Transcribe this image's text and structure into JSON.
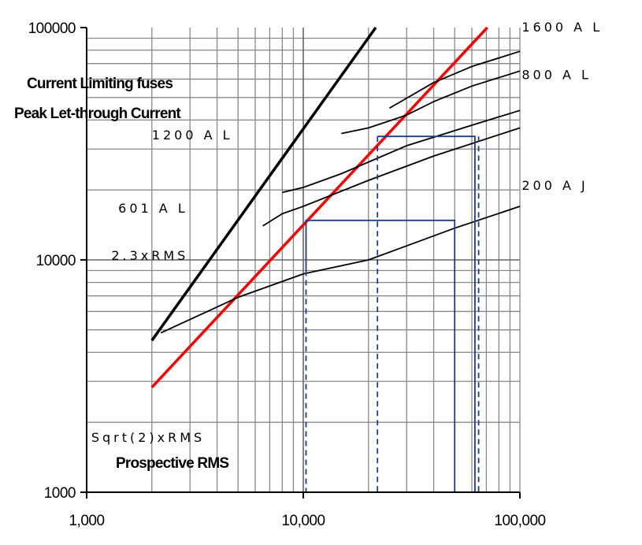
{
  "chart_data": {
    "type": "line",
    "title_lines": [
      "Current Limiting fuses",
      "Peak Let-through Current"
    ],
    "xlabel": "Prospective RMS",
    "ylabel": "",
    "x_scale": "log",
    "y_scale": "log",
    "xlim": [
      1000,
      100000
    ],
    "ylim": [
      1000,
      100000
    ],
    "x_ticks": [
      {
        "value": 1000,
        "label": "1,000"
      },
      {
        "value": 10000,
        "label": "10,000"
      },
      {
        "value": 100000,
        "label": "100,000"
      }
    ],
    "y_ticks": [
      {
        "value": 100000,
        "label": "100000"
      },
      {
        "value": 10000,
        "label": "10000"
      },
      {
        "value": 1000,
        "label": "1000"
      }
    ],
    "grid": true,
    "series": [
      {
        "name": "2.3xRMS",
        "color": "#000000",
        "style": "thick",
        "label_at": [
          1300,
          10000
        ],
        "points": [
          [
            2000,
            4500
          ],
          [
            21600,
            100000
          ]
        ]
      },
      {
        "name": "Sqrt(2)xRMS",
        "color": "#ff0000",
        "style": "thick",
        "label_at": [
          1050,
          1650
        ],
        "points": [
          [
            2000,
            2828
          ],
          [
            70700,
            100000
          ]
        ]
      },
      {
        "name": "200 A J",
        "color": "#000000",
        "style": "thin",
        "label_at": [
          102000,
          20000
        ],
        "points": [
          [
            2200,
            4850
          ],
          [
            5000,
            6900
          ],
          [
            10000,
            8700
          ],
          [
            20000,
            10000
          ],
          [
            50000,
            13700
          ],
          [
            100000,
            17000
          ]
        ]
      },
      {
        "name": "601 A L",
        "color": "#000000",
        "style": "thin",
        "label_at": [
          1400,
          16000
        ],
        "points": [
          [
            6500,
            14000
          ],
          [
            8000,
            15800
          ],
          [
            10000,
            17000
          ],
          [
            20000,
            22000
          ],
          [
            40000,
            28000
          ],
          [
            100000,
            37000
          ]
        ]
      },
      {
        "name": "1200 A L",
        "color": "#000000",
        "style": "thin",
        "label_at": [
          2000,
          33000
        ],
        "points": [
          [
            8000,
            19500
          ],
          [
            10000,
            20500
          ],
          [
            15000,
            23500
          ],
          [
            30000,
            31000
          ],
          [
            60000,
            38000
          ],
          [
            100000,
            44000
          ]
        ]
      },
      {
        "name": "800 A L",
        "color": "#000000",
        "style": "thin",
        "label_at": [
          102000,
          60000
        ],
        "points": [
          [
            15000,
            35000
          ],
          [
            20000,
            37000
          ],
          [
            30000,
            42000
          ],
          [
            40000,
            48000
          ],
          [
            60000,
            56000
          ],
          [
            100000,
            65000
          ]
        ]
      },
      {
        "name": "1600 A L",
        "color": "#000000",
        "style": "thin",
        "label_at": [
          102000,
          96000
        ],
        "points": [
          [
            25000,
            45000
          ],
          [
            40000,
            58000
          ],
          [
            60000,
            68000
          ],
          [
            100000,
            79000
          ]
        ]
      }
    ],
    "annotations": [
      {
        "color": "#1f3c88",
        "dash": false,
        "points": [
          [
            50000,
            1000
          ],
          [
            50000,
            14800
          ],
          [
            10300,
            14800
          ],
          [
            10300,
            9000
          ]
        ]
      },
      {
        "color": "#1f3c88",
        "dash": true,
        "points": [
          [
            10300,
            9000
          ],
          [
            10300,
            1000
          ]
        ]
      },
      {
        "color": "#1f3c88",
        "dash": false,
        "points": [
          [
            62000,
            1000
          ],
          [
            62000,
            34000
          ],
          [
            22000,
            34000
          ]
        ]
      },
      {
        "color": "#1f3c88",
        "dash": true,
        "points": [
          [
            22000,
            34000
          ],
          [
            22000,
            1000
          ]
        ]
      },
      {
        "color": "#1f3c88",
        "dash": true,
        "points": [
          [
            64500,
            34000
          ],
          [
            64500,
            1000
          ]
        ]
      }
    ]
  }
}
